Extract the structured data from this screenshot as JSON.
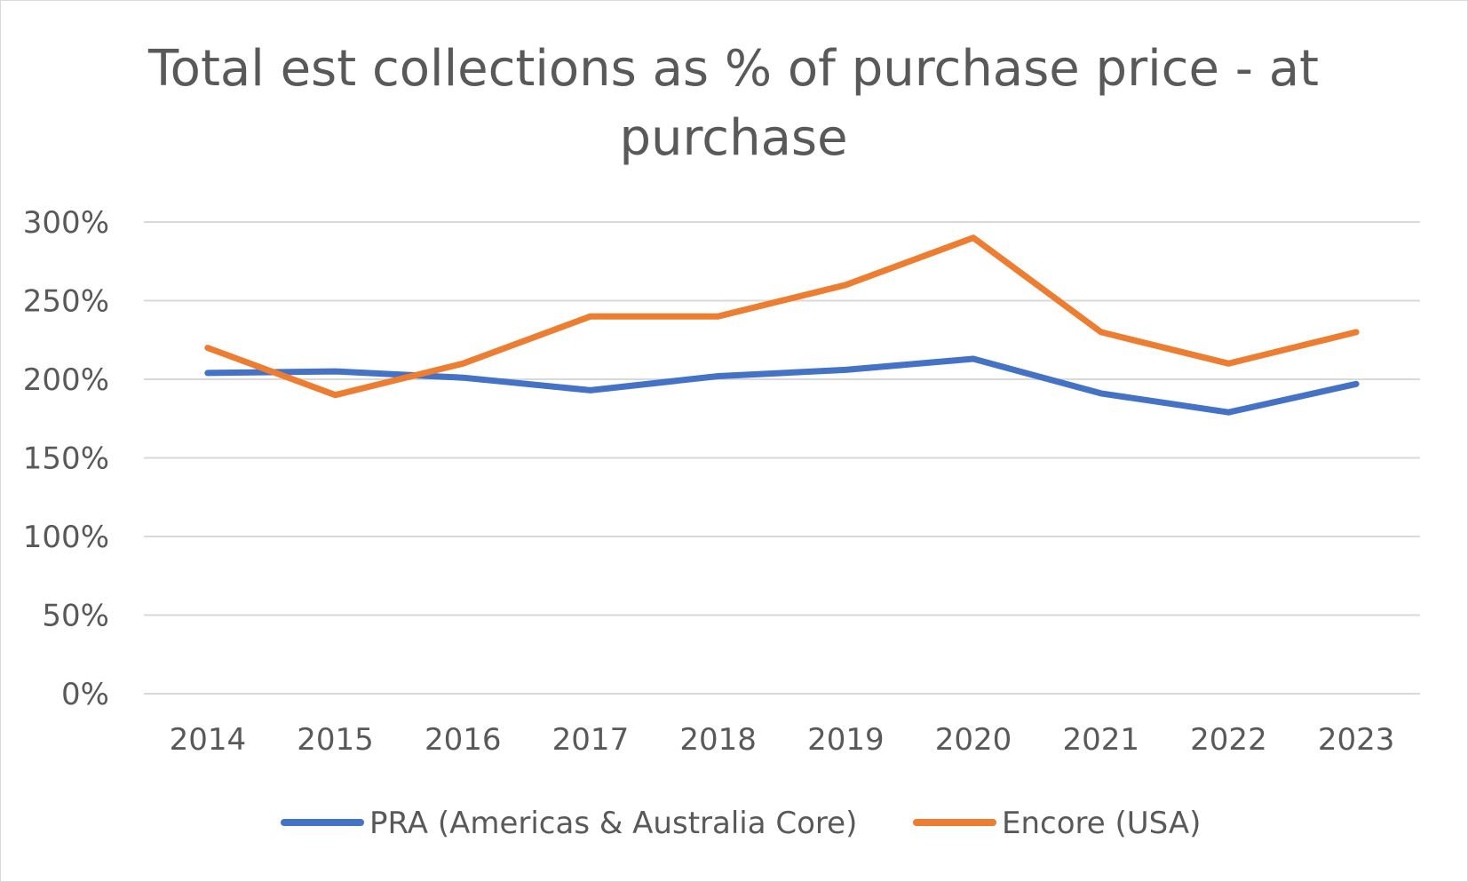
{
  "chart_data": {
    "type": "line",
    "title": "Total est collections as % of purchase price - at purchase",
    "title_lines": [
      "Total est collections as % of purchase price - at",
      "purchase"
    ],
    "categories": [
      "2014",
      "2015",
      "2016",
      "2017",
      "2018",
      "2019",
      "2020",
      "2021",
      "2022",
      "2023"
    ],
    "y_tick_labels": [
      "0%",
      "50%",
      "100%",
      "150%",
      "200%",
      "250%",
      "300%"
    ],
    "ylim": [
      0,
      300
    ],
    "y_unit": "%",
    "grid": true,
    "legend_position": "bottom",
    "series": [
      {
        "name": "PRA (Americas & Australia Core)",
        "color": "#4472c4",
        "values": [
          204,
          205,
          201,
          193,
          202,
          206,
          213,
          191,
          179,
          197
        ]
      },
      {
        "name": "Encore (USA)",
        "color": "#ed7d31",
        "values": [
          220,
          190,
          210,
          240,
          240,
          260,
          290,
          230,
          210,
          230
        ]
      }
    ]
  }
}
